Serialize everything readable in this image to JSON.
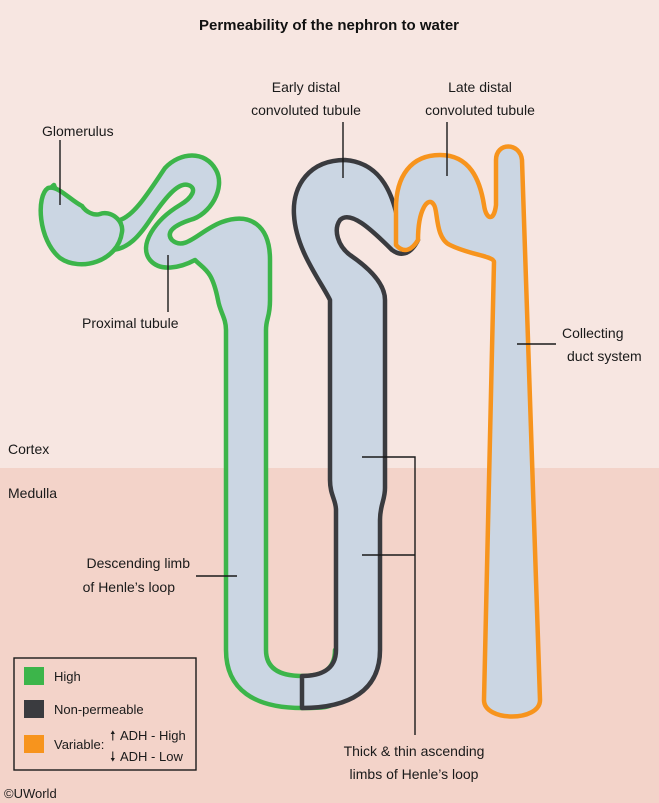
{
  "title": "Permeability of the nephron to water",
  "regions": {
    "cortex": "Cortex",
    "medulla": "Medulla"
  },
  "labels": {
    "glomerulus": "Glomerulus",
    "proximal_tubule": "Proximal tubule",
    "early_distal_1": "Early distal",
    "early_distal_2": "convoluted tubule",
    "late_distal_1": "Late distal",
    "late_distal_2": "convoluted tubule",
    "collecting_1": "Collecting",
    "collecting_2": "duct system",
    "descending_1": "Descending limb",
    "descending_2": "of Henle’s loop",
    "ascending_1": "Thick & thin ascending",
    "ascending_2": "limbs of Henle’s loop"
  },
  "legend": {
    "high": "High",
    "nonpermeable": "Non-permeable",
    "variable": "Variable:",
    "adh_high": "ADH - High",
    "adh_low": "ADH - Low"
  },
  "copyright": "©UWorld",
  "colors": {
    "high": "#3cb54a",
    "nonpermeable": "#3a3b3f",
    "variable": "#f7941d",
    "tubule_fill": "#cbd6e3",
    "cortex_bg": "#f7e6e1",
    "medulla_bg": "#f3d3c9"
  }
}
